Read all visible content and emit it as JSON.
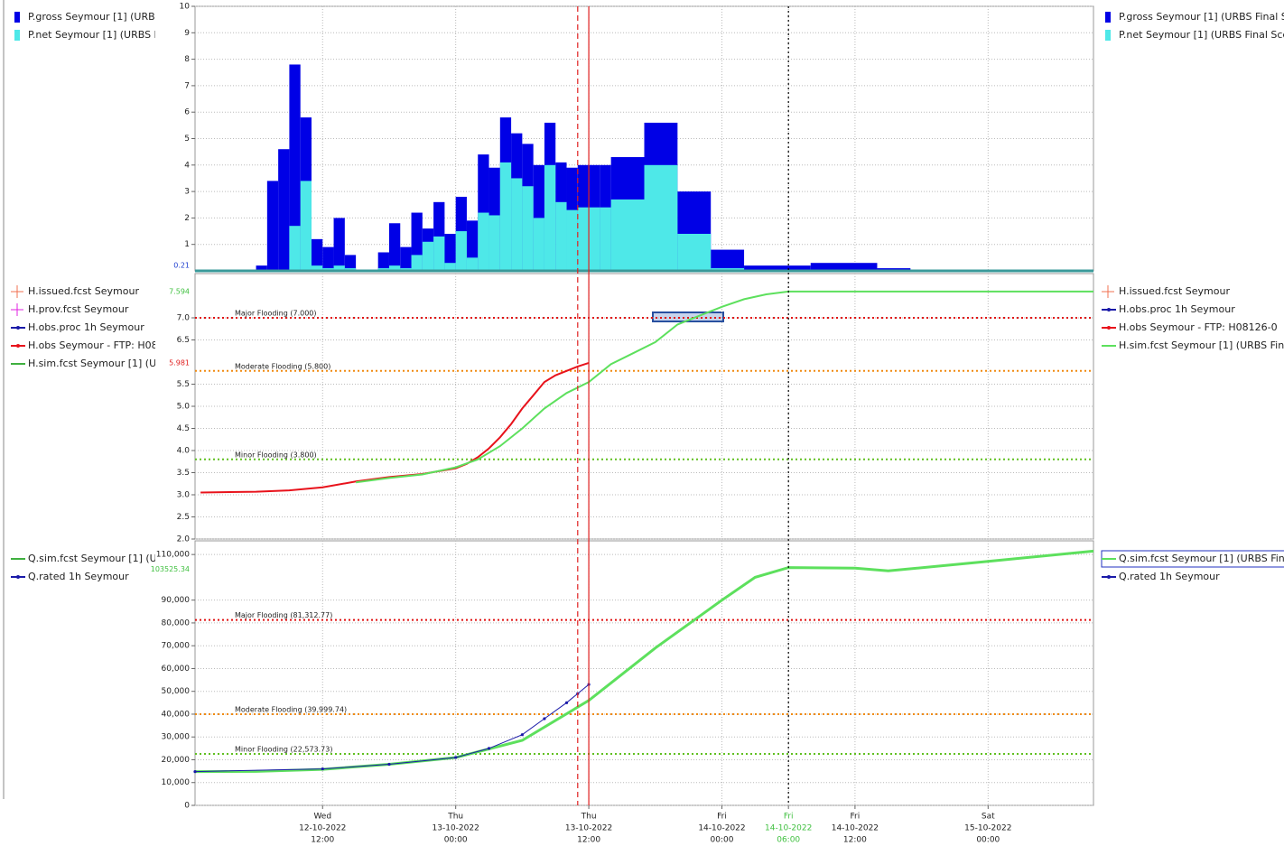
{
  "chart_data": [
    {
      "type": "histogram",
      "xlim": [
        "2022-10-12T00:30",
        "2022-10-15T09:30"
      ],
      "ylim": [
        0,
        10
      ],
      "yticks": [
        1,
        2,
        3,
        4,
        5,
        6,
        7,
        8,
        9,
        10
      ],
      "grid": true,
      "value_markers": [
        {
          "value": 0.21,
          "label": "0.21",
          "color": "#2040d0"
        }
      ],
      "bins": [
        "2022-10-12T06:00",
        "2022-10-12T07:00",
        "2022-10-12T08:00",
        "2022-10-12T09:00",
        "2022-10-12T10:00",
        "2022-10-12T11:00",
        "2022-10-12T12:00",
        "2022-10-12T13:00",
        "2022-10-12T14:00",
        "2022-10-12T15:00",
        "2022-10-12T16:00",
        "2022-10-12T17:00",
        "2022-10-12T18:00",
        "2022-10-12T19:00",
        "2022-10-12T20:00",
        "2022-10-12T21:00",
        "2022-10-12T22:00",
        "2022-10-12T23:00",
        "2022-10-13T00:00",
        "2022-10-13T01:00",
        "2022-10-13T02:00",
        "2022-10-13T03:00",
        "2022-10-13T04:00",
        "2022-10-13T05:00",
        "2022-10-13T06:00",
        "2022-10-13T07:00",
        "2022-10-13T08:00",
        "2022-10-13T09:00",
        "2022-10-13T10:00",
        "2022-10-13T11:00",
        "2022-10-13T12:00",
        "2022-10-13T13:00",
        "2022-10-13T14:00",
        "2022-10-13T17:00",
        "2022-10-13T20:00",
        "2022-10-13T23:00",
        "2022-10-14T02:00",
        "2022-10-14T08:00",
        "2022-10-14T14:00",
        "2022-10-14T17:00",
        "2022-10-14T23:00"
      ],
      "series": [
        {
          "name": "P.gross Seymour [1] (URBS Final S",
          "color": "#0000e6",
          "values": [
            0.2,
            3.4,
            4.6,
            7.8,
            5.8,
            1.2,
            0.9,
            2.0,
            0.6,
            0,
            0,
            0.7,
            1.8,
            0.9,
            2.2,
            1.6,
            2.6,
            1.4,
            2.8,
            1.9,
            4.4,
            3.9,
            5.8,
            5.2,
            4.8,
            4.0,
            5.6,
            4.1,
            3.9,
            4.0,
            4.0,
            4.0,
            4.3,
            5.6,
            3.0,
            0.8,
            0.2,
            0.3,
            0.1,
            0.05
          ]
        },
        {
          "name": "P.net Seymour [1] (URBS Final Sce",
          "color": "#4ee8e8",
          "values": [
            0,
            0,
            0,
            1.7,
            3.4,
            0.2,
            0.1,
            0.2,
            0.1,
            0,
            0,
            0.1,
            0.2,
            0.1,
            0.6,
            1.1,
            1.3,
            0.3,
            1.5,
            0.5,
            2.2,
            2.1,
            4.1,
            3.5,
            3.2,
            2.0,
            4.0,
            2.6,
            2.3,
            2.4,
            2.4,
            2.4,
            2.7,
            4.0,
            1.4,
            0.1,
            0.05,
            0.05,
            0,
            0
          ]
        }
      ],
      "legend_left": [
        {
          "name": "P.gross Seymour [1] (URBS Final S",
          "color": "#0000e6",
          "symbol": "block"
        },
        {
          "name": "P.net Seymour [1] (URBS Final Sce",
          "color": "#4ee8e8",
          "symbol": "block"
        }
      ],
      "legend_right": [
        {
          "name": "P.gross Seymour [1] (URBS Final S",
          "color": "#0000e6",
          "symbol": "block"
        },
        {
          "name": "P.net Seymour [1] (URBS Final Sce",
          "color": "#4ee8e8",
          "symbol": "block"
        }
      ]
    },
    {
      "type": "line",
      "xlim": [
        "2022-10-12T00:30",
        "2022-10-15T09:30"
      ],
      "ylim": [
        2,
        8
      ],
      "yticks": [
        {
          "value": 2,
          "label": "2.0"
        },
        2.5,
        {
          "value": 3,
          "label": "3.0"
        },
        3.5,
        {
          "value": 4,
          "label": "4.0"
        },
        4.5,
        {
          "value": 5,
          "label": "5.0"
        },
        5.5,
        6.5,
        {
          "value": 7,
          "label": "7.0"
        }
      ],
      "grid": true,
      "value_markers": [
        {
          "value": 7.594,
          "label": "7.594",
          "color": "#40c040"
        },
        {
          "value": 5.981,
          "label": "5.981",
          "color": "#e02020"
        }
      ],
      "thresholds": [
        {
          "value": 7,
          "label": "Major Flooding (7.000)",
          "color": "#e01010"
        },
        {
          "value": 5.8,
          "label": "Moderate Flooding (5.800)",
          "color": "#f08a10"
        },
        {
          "value": 3.8,
          "label": "Minor Flooding (3.800)",
          "color": "#60c020"
        }
      ],
      "series": [
        {
          "name": "H.obs Seymour - FTP: H08126-0",
          "color": "#e8121b",
          "x": [
            "2022-10-12T01:00",
            "2022-10-12T06:00",
            "2022-10-12T09:00",
            "2022-10-12T12:00",
            "2022-10-12T15:00",
            "2022-10-12T18:00",
            "2022-10-12T21:00",
            "2022-10-13T00:00",
            "2022-10-13T01:00",
            "2022-10-13T02:00",
            "2022-10-13T03:00",
            "2022-10-13T04:00",
            "2022-10-13T05:00",
            "2022-10-13T06:00",
            "2022-10-13T07:00",
            "2022-10-13T08:00",
            "2022-10-13T09:00",
            "2022-10-13T10:00",
            "2022-10-13T11:00",
            "2022-10-13T12:00"
          ],
          "values": [
            3.05,
            3.07,
            3.1,
            3.17,
            3.3,
            3.4,
            3.47,
            3.6,
            3.7,
            3.85,
            4.05,
            4.3,
            4.6,
            4.95,
            5.25,
            5.55,
            5.7,
            5.8,
            5.9,
            5.981
          ]
        },
        {
          "name": "H.sim.fcst Seymour [1] (URBS Fin",
          "color": "#5de05d",
          "x": [
            "2022-10-12T15:00",
            "2022-10-12T18:00",
            "2022-10-12T21:00",
            "2022-10-13T00:00",
            "2022-10-13T02:00",
            "2022-10-13T04:00",
            "2022-10-13T06:00",
            "2022-10-13T08:00",
            "2022-10-13T10:00",
            "2022-10-13T12:00",
            "2022-10-13T14:00",
            "2022-10-13T16:00",
            "2022-10-13T18:00",
            "2022-10-13T20:00",
            "2022-10-13T22:00",
            "2022-10-14T00:00",
            "2022-10-14T02:00",
            "2022-10-14T04:00",
            "2022-10-14T06:00",
            "2022-10-15T09:30"
          ],
          "values": [
            3.28,
            3.38,
            3.46,
            3.62,
            3.8,
            4.1,
            4.5,
            4.95,
            5.3,
            5.55,
            5.95,
            6.2,
            6.45,
            6.85,
            7.05,
            7.25,
            7.42,
            7.53,
            7.594,
            7.594
          ]
        }
      ],
      "legend_left": [
        {
          "name": "H.issued.fcst Seymour",
          "color": "#f07050",
          "symbol": "plus"
        },
        {
          "name": "H.prov.fcst Seymour",
          "color": "#e020e0",
          "symbol": "plus"
        },
        {
          "name": "H.obs.proc 1h Seymour",
          "color": "#1a1aa8",
          "symbol": "line-dot"
        },
        {
          "name": "H.obs Seymour - FTP: H08126-0",
          "color": "#e8121b",
          "symbol": "line-dot"
        },
        {
          "name": "H.sim.fcst Seymour [1] (URBS Fin",
          "color": "#40b040",
          "symbol": "line"
        }
      ],
      "legend_right": [
        {
          "name": "H.issued.fcst Seymour",
          "color": "#f07050",
          "symbol": "plus"
        },
        {
          "name": "H.obs.proc 1h Seymour",
          "color": "#1a1aa8",
          "symbol": "line-dot"
        },
        {
          "name": "H.obs Seymour - FTP: H08126-0",
          "color": "#e8121b",
          "symbol": "line-dot"
        },
        {
          "name": "H.sim.fcst Seymour [1] (URBS Fin",
          "color": "#5de05d",
          "symbol": "line"
        }
      ]
    },
    {
      "type": "line",
      "xlim": [
        "2022-10-12T00:30",
        "2022-10-15T09:30"
      ],
      "xticks": [
        {
          "value": "2022-10-12T12:00",
          "label": [
            "Wed",
            "12-10-2022",
            "12:00"
          ]
        },
        {
          "value": "2022-10-13T00:00",
          "label": [
            "Thu",
            "13-10-2022",
            "00:00"
          ]
        },
        {
          "value": "2022-10-13T12:00",
          "label": [
            "Thu",
            "13-10-2022",
            "12:00"
          ]
        },
        {
          "value": "2022-10-14T00:00",
          "label": [
            "Fri",
            "14-10-2022",
            "00:00"
          ]
        },
        {
          "value": "2022-10-14T06:00",
          "label": [
            "Fri",
            "14-10-2022",
            "06:00"
          ],
          "color": "#40c040"
        },
        {
          "value": "2022-10-14T12:00",
          "label": [
            "Fri",
            "14-10-2022",
            "12:00"
          ]
        },
        {
          "value": "2022-10-15T00:00",
          "label": [
            "Sat",
            "15-10-2022",
            "00:00"
          ]
        }
      ],
      "ylim": [
        0,
        116000
      ],
      "yticks": [
        0,
        {
          "value": 10000,
          "label": "10,000"
        },
        {
          "value": 20000,
          "label": "20,000"
        },
        {
          "value": 30000,
          "label": "30,000"
        },
        {
          "value": 40000,
          "label": "40,000"
        },
        {
          "value": 50000,
          "label": "50,000"
        },
        {
          "value": 60000,
          "label": "60,000"
        },
        {
          "value": 70000,
          "label": "70,000"
        },
        {
          "value": 80000,
          "label": "80,000"
        },
        {
          "value": 90000,
          "label": "90,000"
        },
        {
          "value": 110000,
          "label": "110,000"
        }
      ],
      "grid": true,
      "value_markers": [
        {
          "value": 103525.34,
          "label": "103525.34",
          "color": "#40c040"
        }
      ],
      "thresholds": [
        {
          "value": 81312.77,
          "label": "Major Flooding (81,312.77)",
          "color": "#e01010"
        },
        {
          "value": 39999.74,
          "label": "Moderate Flooding (39,999.74)",
          "color": "#f08a10"
        },
        {
          "value": 22573.73,
          "label": "Minor Flooding (22,573.73)",
          "color": "#60c020"
        }
      ],
      "series": [
        {
          "name": "Q.sim.fcst Seymour [1] (URBS Fin",
          "color": "#5de05d",
          "width": 3,
          "x": [
            "2022-10-12T00:30",
            "2022-10-12T06:00",
            "2022-10-12T12:00",
            "2022-10-12T18:00",
            "2022-10-13T00:00",
            "2022-10-13T06:00",
            "2022-10-13T12:00",
            "2022-10-13T18:00",
            "2022-10-14T00:00",
            "2022-10-14T03:00",
            "2022-10-14T06:00",
            "2022-10-14T12:00",
            "2022-10-14T15:00",
            "2022-10-15T00:00",
            "2022-10-15T09:30"
          ],
          "values": [
            14800,
            14900,
            15800,
            18000,
            21000,
            28500,
            46000,
            69000,
            90000,
            100000,
            104300,
            104000,
            102800,
            107000,
            111500
          ]
        },
        {
          "name": "Q.rated 1h Seymour",
          "color": "#1a1aa8",
          "width": 1,
          "dots": true,
          "x": [
            "2022-10-12T00:30",
            "2022-10-12T12:00",
            "2022-10-12T18:00",
            "2022-10-13T00:00",
            "2022-10-13T03:00",
            "2022-10-13T06:00",
            "2022-10-13T08:00",
            "2022-10-13T10:00",
            "2022-10-13T11:00",
            "2022-10-13T12:00"
          ],
          "values": [
            14800,
            16000,
            18000,
            21000,
            25000,
            31000,
            38000,
            45000,
            49000,
            53000
          ]
        }
      ],
      "legend_left": [
        {
          "name": "Q.sim.fcst Seymour [1] (URBS Fin",
          "color": "#40b040",
          "symbol": "line"
        },
        {
          "name": "Q.rated 1h Seymour",
          "color": "#1a1aa8",
          "symbol": "line-dot"
        }
      ],
      "legend_right": [
        {
          "name": "Q.sim.fcst Seymour [1] (URBS Fin",
          "color": "#5de05d",
          "symbol": "line",
          "selected": true
        },
        {
          "name": "Q.rated 1h Seymour",
          "color": "#1a1aa8",
          "symbol": "line-dot"
        }
      ]
    }
  ],
  "markers": [
    {
      "x": "2022-10-13T11:00",
      "color": "#e02020",
      "style": "dashed"
    },
    {
      "x": "2022-10-13T12:00",
      "color": "#e02020",
      "style": "solid"
    },
    {
      "x": "2022-10-14T06:00",
      "color": "#000000",
      "style": "dotted"
    }
  ]
}
